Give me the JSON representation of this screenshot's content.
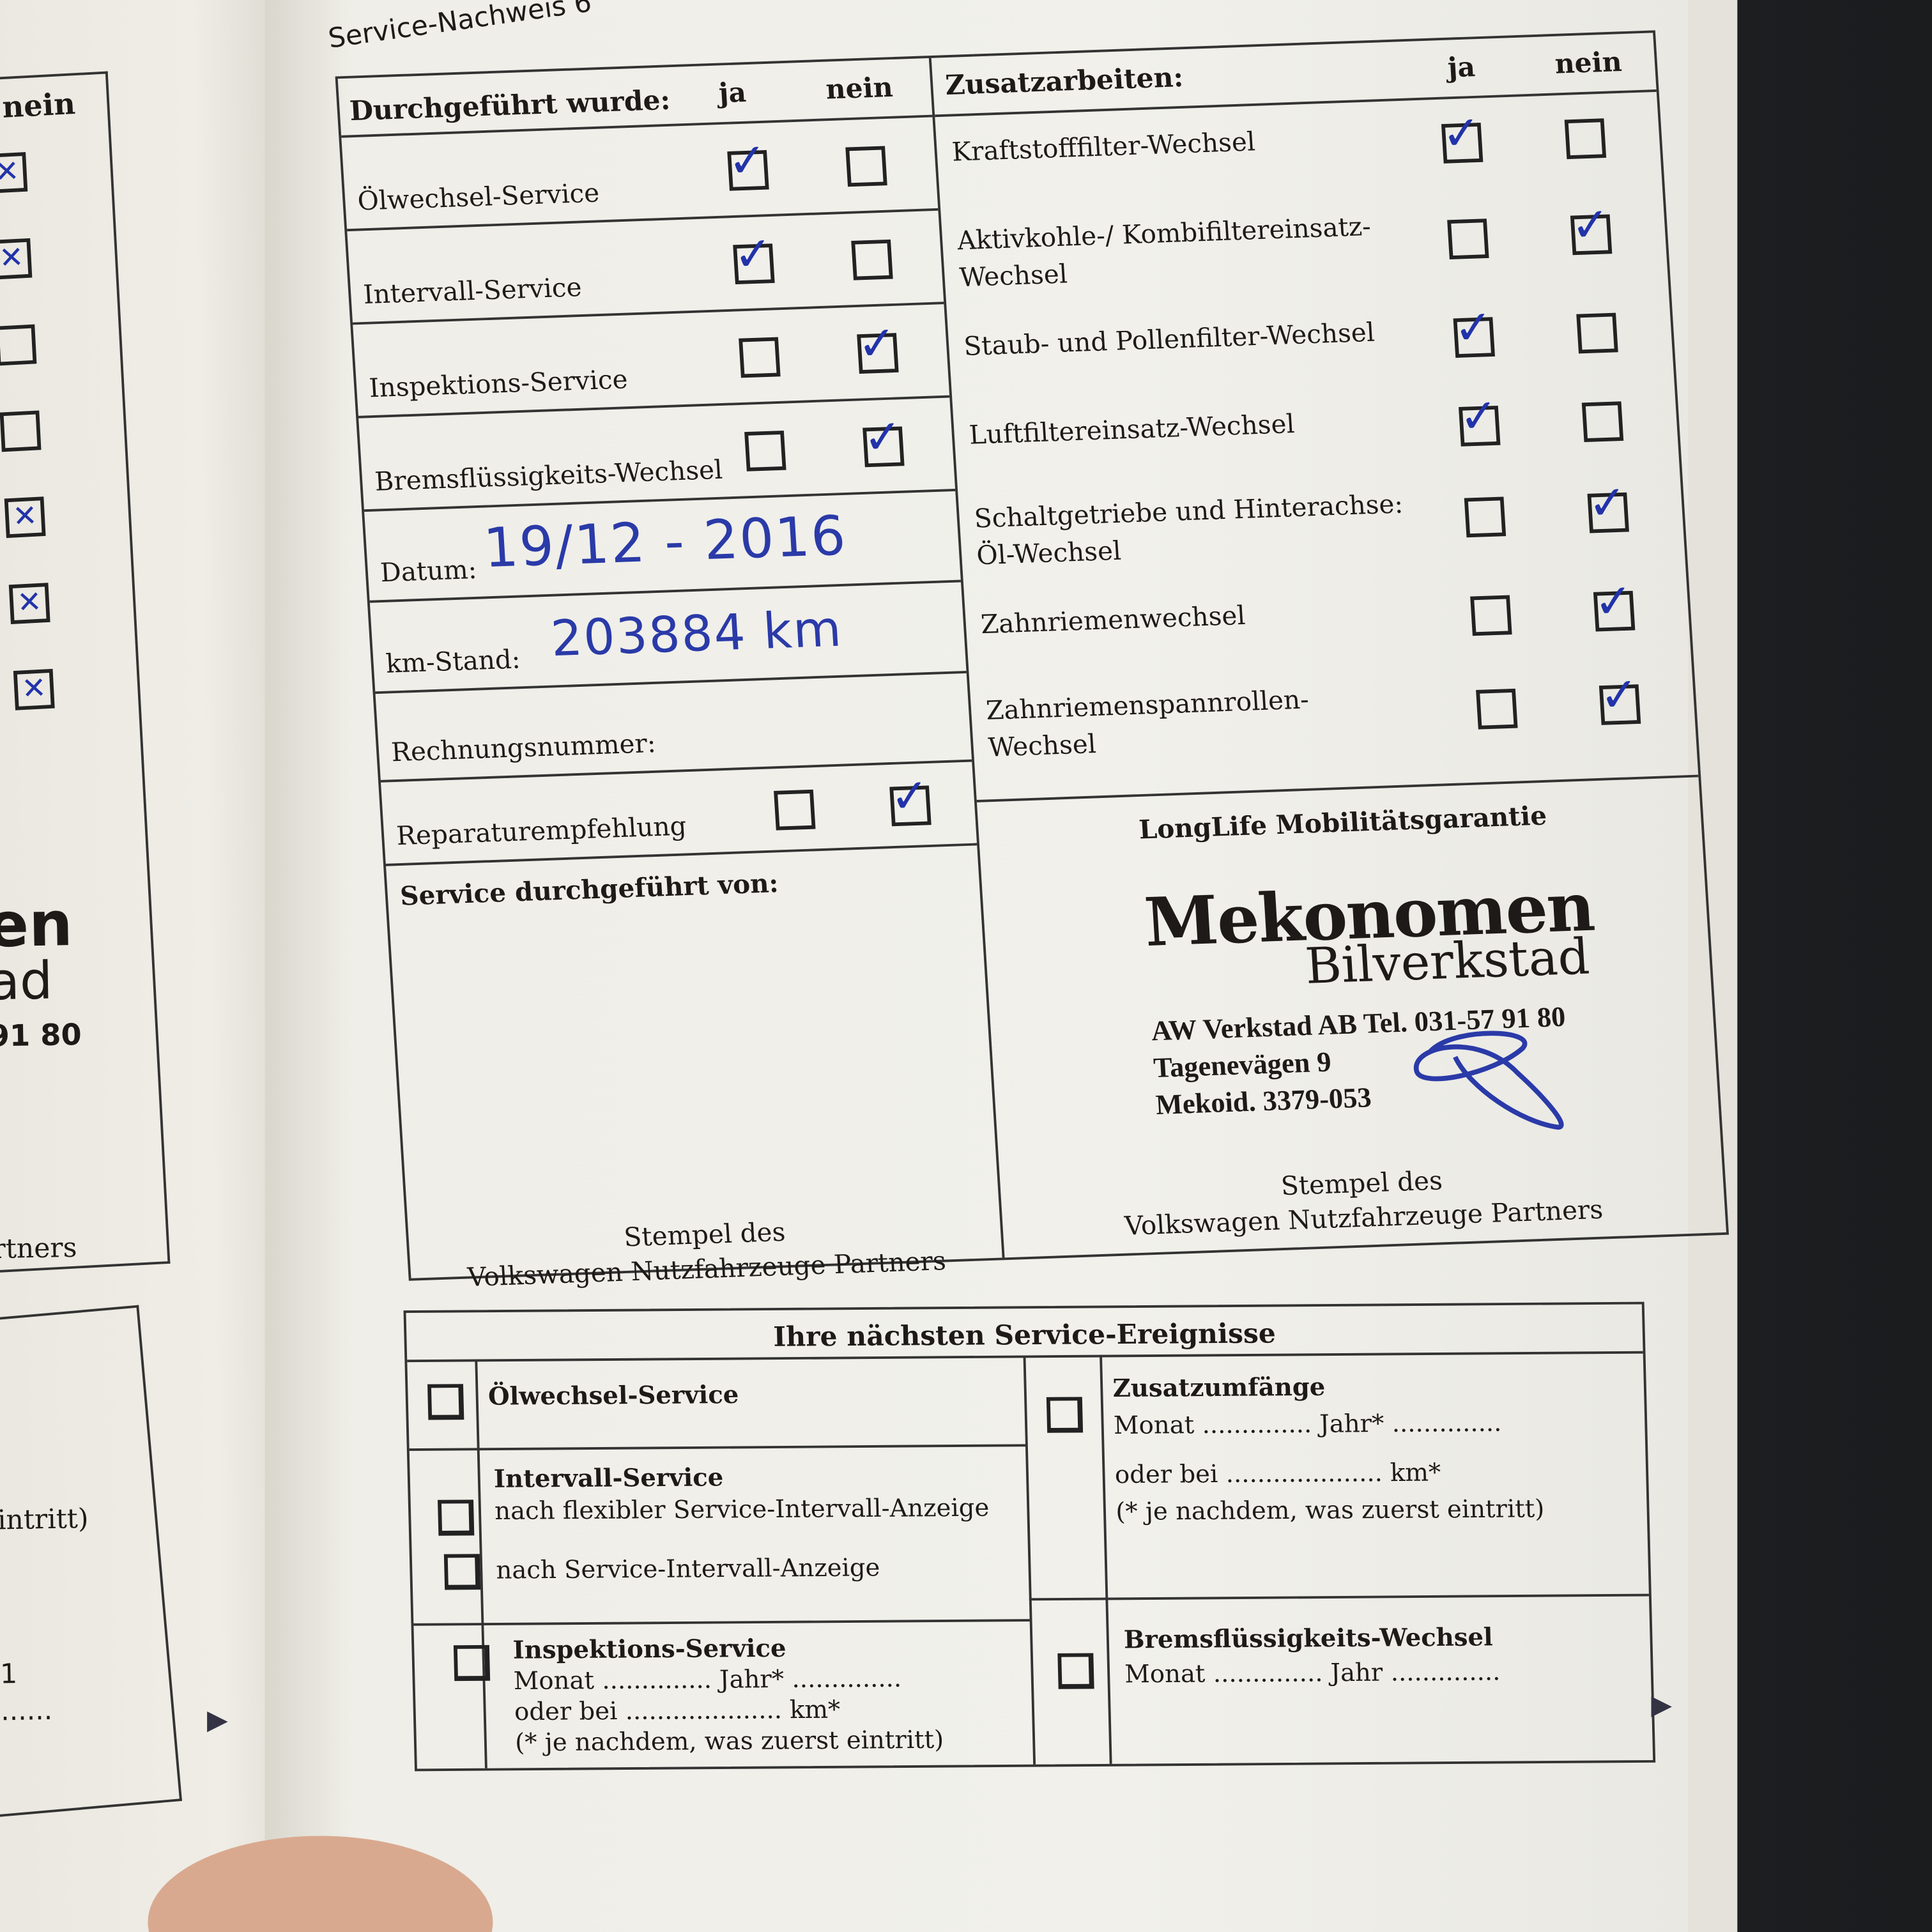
{
  "left_page": {
    "nein_label": "nein",
    "checkboxes": [
      "x",
      "x",
      "",
      "",
      "x",
      "x",
      "x"
    ],
    "fragments": [
      "en",
      "ad",
      "91 80",
      "rtners",
      "intritt)",
      "1",
      "......"
    ]
  },
  "title": "Service-Nachweis 6",
  "left_table": {
    "header": {
      "label": "Durchgeführt wurde:",
      "ja": "ja",
      "nein": "nein"
    },
    "services": [
      {
        "label": "Ölwechsel-Service",
        "ja": true,
        "nein": false
      },
      {
        "label": "Intervall-Service",
        "ja": true,
        "nein": false
      },
      {
        "label": "Inspektions-Service",
        "ja": false,
        "nein": true
      },
      {
        "label": "Bremsflüssigkeits-Wechsel",
        "ja": false,
        "nein": true
      }
    ],
    "datum": {
      "label": "Datum:",
      "value": "19/12 - 2016"
    },
    "km_stand": {
      "label": "km-Stand:",
      "value": "203884 km"
    },
    "rechnungsnummer": {
      "label": "Rechnungsnummer:",
      "value": ""
    },
    "reparaturempfehlung": {
      "label": "Reparaturempfehlung",
      "ja": false,
      "nein": true
    },
    "stamp": {
      "label": "Service durchgeführt von:",
      "caption_1": "Stempel des",
      "caption_2": "Volkswagen Nutzfahrzeuge Partners"
    }
  },
  "right_table": {
    "header": {
      "label": "Zusatzarbeiten:",
      "ja": "ja",
      "nein": "nein"
    },
    "items": [
      {
        "label": "Kraftstofffilter-Wechsel",
        "ja": true,
        "nein": false
      },
      {
        "label": "Aktivkohle-/ Kombifiltereinsatz-\nWechsel",
        "ja": false,
        "nein": true
      },
      {
        "label": "Staub- und Pollenfilter-Wechsel",
        "ja": true,
        "nein": false
      },
      {
        "label": "Luftfiltereinsatz-Wechsel",
        "ja": true,
        "nein": false
      },
      {
        "label": "Schaltgetriebe und Hinterachse:\nÖl-Wechsel",
        "ja": false,
        "nein": true
      },
      {
        "label": "Zahnriemenwechsel",
        "ja": false,
        "nein": true
      },
      {
        "label": "Zahnriemenspannrollen-\nWechsel",
        "ja": false,
        "nein": true
      }
    ],
    "stamp": {
      "label": "LongLife Mobilitätsgarantie",
      "logo_line_1": "Mekonomen",
      "logo_line_2": "Bilverkstad",
      "company": "AW Verkstad AB  Tel. 031-57 91 80",
      "street": "Tagenevägen 9",
      "mekoid": "Mekoid. 3379-053",
      "caption_1": "Stempel des",
      "caption_2": "Volkswagen Nutzfahrzeuge Partners"
    }
  },
  "next_events": {
    "title": "Ihre nächsten Service-Ereignisse",
    "oelwechsel": "Ölwechsel-Service",
    "intervall": {
      "title": "Intervall-Service",
      "option_1": "nach flexibler Service-Intervall-Anzeige",
      "option_2": "nach Service-Intervall-Anzeige"
    },
    "inspektion": {
      "title": "Inspektions-Service",
      "line_1": "Monat .............. Jahr* ..............",
      "line_2": "oder bei .................... km*",
      "line_3": "(* je nachdem, was zuerst eintritt)"
    },
    "zusatz": {
      "title": "Zusatzumfänge",
      "line_1": "Monat .............. Jahr* ..............",
      "line_2": "oder bei .................... km*",
      "line_3": "(* je nachdem, was zuerst eintritt)"
    },
    "brems": {
      "title": "Bremsflüssigkeits-Wechsel",
      "line_1": "Monat .............. Jahr .............."
    }
  },
  "colors": {
    "ink": "#2a3aa8",
    "paper": "#f1f0eb",
    "line": "#333333"
  }
}
